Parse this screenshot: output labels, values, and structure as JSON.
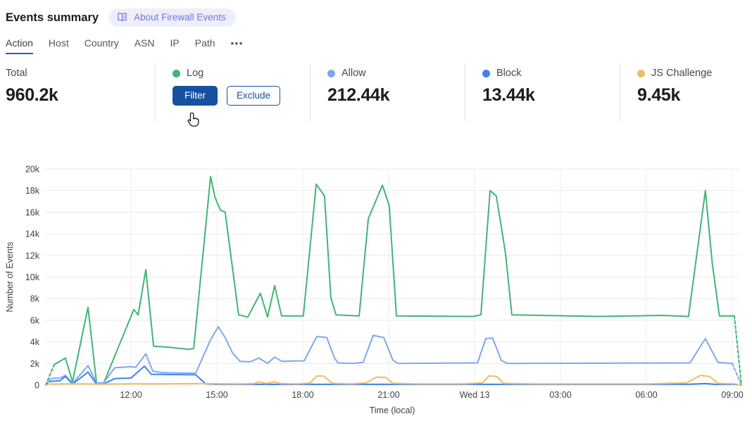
{
  "header": {
    "title": "Events summary",
    "about_badge": "About Firewall Events"
  },
  "tabs": {
    "items": [
      {
        "label": "Action",
        "active": true
      },
      {
        "label": "Host",
        "active": false
      },
      {
        "label": "Country",
        "active": false
      },
      {
        "label": "ASN",
        "active": false
      },
      {
        "label": "IP",
        "active": false
      },
      {
        "label": "Path",
        "active": false
      }
    ],
    "overflow_label": "•••"
  },
  "stats": {
    "total": {
      "label": "Total",
      "value": "960.2k"
    },
    "log": {
      "label": "Log",
      "color": "#41b576",
      "filter_label": "Filter",
      "exclude_label": "Exclude"
    },
    "allow": {
      "label": "Allow",
      "value": "212.44k",
      "color": "#7fa7f0"
    },
    "block": {
      "label": "Block",
      "value": "13.44k",
      "color": "#3e81f1"
    },
    "js_challenge": {
      "label": "JS Challenge",
      "value": "9.45k",
      "color": "#f2ba62"
    }
  },
  "chart_data": {
    "type": "line",
    "title": "",
    "xlabel": "Time (local)",
    "ylabel": "Number of Events",
    "grid": true,
    "legend_position": "stats-row-above-chart",
    "unit": "k (thousands of events)",
    "ylim": [
      0,
      20
    ],
    "x_domain_hours": [
      0,
      24.32
    ],
    "x_ticks": [
      {
        "h": 3,
        "label": "12:00"
      },
      {
        "h": 6,
        "label": "15:00"
      },
      {
        "h": 9,
        "label": "18:00"
      },
      {
        "h": 12,
        "label": "21:00"
      },
      {
        "h": 15,
        "label": "Wed 13"
      },
      {
        "h": 18,
        "label": "03:00"
      },
      {
        "h": 21,
        "label": "06:00"
      },
      {
        "h": 24,
        "label": "09:00"
      }
    ],
    "y_ticks": [
      {
        "v": 0,
        "label": "0"
      },
      {
        "v": 2,
        "label": "2k"
      },
      {
        "v": 4,
        "label": "4k"
      },
      {
        "v": 6,
        "label": "6k"
      },
      {
        "v": 8,
        "label": "8k"
      },
      {
        "v": 10,
        "label": "10k"
      },
      {
        "v": 12,
        "label": "12k"
      },
      {
        "v": 14,
        "label": "14k"
      },
      {
        "v": 16,
        "label": "16k"
      },
      {
        "v": 18,
        "label": "18k"
      },
      {
        "v": 20,
        "label": "20k"
      }
    ],
    "series": [
      {
        "name": "Log",
        "color": "#41b576",
        "lead": [
          [
            0.02,
            0
          ],
          [
            0.32,
            1.9
          ]
        ],
        "points": [
          [
            0.32,
            1.9
          ],
          [
            0.71,
            2.5
          ],
          [
            0.96,
            0.3
          ],
          [
            1.5,
            7.2
          ],
          [
            1.8,
            0.15
          ],
          [
            2.04,
            0.15
          ],
          [
            3.1,
            7.0
          ],
          [
            3.25,
            6.5
          ],
          [
            3.52,
            10.7
          ],
          [
            3.79,
            3.6
          ],
          [
            4.33,
            3.5
          ],
          [
            5.02,
            3.3
          ],
          [
            5.19,
            3.4
          ],
          [
            5.78,
            19.3
          ],
          [
            5.93,
            17.4
          ],
          [
            6.12,
            16.2
          ],
          [
            6.29,
            16.0
          ],
          [
            6.76,
            6.5
          ],
          [
            7.08,
            6.3
          ],
          [
            7.52,
            8.5
          ],
          [
            7.77,
            6.3
          ],
          [
            8.02,
            9.2
          ],
          [
            8.26,
            6.4
          ],
          [
            9.02,
            6.4
          ],
          [
            9.47,
            18.6
          ],
          [
            9.76,
            17.5
          ],
          [
            9.98,
            8.1
          ],
          [
            10.16,
            6.5
          ],
          [
            10.97,
            6.4
          ],
          [
            11.29,
            15.4
          ],
          [
            11.78,
            18.5
          ],
          [
            12.02,
            16.6
          ],
          [
            12.27,
            6.4
          ],
          [
            14.95,
            6.35
          ],
          [
            15.22,
            6.5
          ],
          [
            15.54,
            18.0
          ],
          [
            15.76,
            17.5
          ],
          [
            16.08,
            12.2
          ],
          [
            16.3,
            6.5
          ],
          [
            19.32,
            6.35
          ],
          [
            21.54,
            6.45
          ],
          [
            22.47,
            6.35
          ],
          [
            23.06,
            18.0
          ],
          [
            23.3,
            11.3
          ],
          [
            23.55,
            6.4
          ],
          [
            24.07,
            6.4
          ]
        ],
        "tail": [
          [
            24.07,
            6.4
          ],
          [
            24.32,
            0
          ]
        ]
      },
      {
        "name": "Allow",
        "color": "#7fa7f0",
        "lead": [
          [
            0.02,
            0
          ],
          [
            0.2,
            0.6
          ]
        ],
        "points": [
          [
            0.2,
            0.6
          ],
          [
            0.52,
            0.65
          ],
          [
            0.71,
            0.9
          ],
          [
            0.96,
            0.15
          ],
          [
            1.5,
            1.8
          ],
          [
            1.8,
            0.2
          ],
          [
            2.04,
            0.2
          ],
          [
            2.43,
            1.6
          ],
          [
            3.0,
            1.7
          ],
          [
            3.17,
            1.65
          ],
          [
            3.52,
            2.9
          ],
          [
            3.76,
            1.3
          ],
          [
            4.08,
            1.15
          ],
          [
            5.26,
            1.1
          ],
          [
            5.78,
            4.2
          ],
          [
            6.05,
            5.4
          ],
          [
            6.29,
            4.4
          ],
          [
            6.54,
            3.0
          ],
          [
            6.81,
            2.2
          ],
          [
            7.15,
            2.15
          ],
          [
            7.47,
            2.5
          ],
          [
            7.77,
            2.0
          ],
          [
            8.02,
            2.6
          ],
          [
            8.26,
            2.2
          ],
          [
            9.05,
            2.25
          ],
          [
            9.49,
            4.5
          ],
          [
            9.84,
            4.4
          ],
          [
            10.11,
            2.5
          ],
          [
            10.23,
            2.05
          ],
          [
            10.72,
            2.0
          ],
          [
            11.11,
            2.1
          ],
          [
            11.46,
            4.6
          ],
          [
            11.83,
            4.4
          ],
          [
            12.15,
            2.3
          ],
          [
            12.32,
            2.0
          ],
          [
            15.1,
            2.05
          ],
          [
            15.39,
            4.3
          ],
          [
            15.63,
            4.35
          ],
          [
            15.93,
            2.3
          ],
          [
            16.13,
            2.0
          ],
          [
            22.52,
            2.05
          ],
          [
            23.06,
            4.3
          ],
          [
            23.5,
            2.1
          ],
          [
            24.0,
            2.0
          ]
        ],
        "tail": [
          [
            24.0,
            2.0
          ],
          [
            24.32,
            0
          ]
        ]
      },
      {
        "name": "Block",
        "color": "#3e81f1",
        "lead": [
          [
            0.02,
            0
          ],
          [
            0.2,
            0.35
          ]
        ],
        "points": [
          [
            0.2,
            0.35
          ],
          [
            0.52,
            0.4
          ],
          [
            0.71,
            0.8
          ],
          [
            0.96,
            0.1
          ],
          [
            1.5,
            1.2
          ],
          [
            1.8,
            0.1
          ],
          [
            2.04,
            0.1
          ],
          [
            2.43,
            0.6
          ],
          [
            3.0,
            0.65
          ],
          [
            3.47,
            1.75
          ],
          [
            3.71,
            1.0
          ],
          [
            5.26,
            0.95
          ],
          [
            5.61,
            0.12
          ],
          [
            6.05,
            0.08
          ],
          [
            10,
            0.07
          ],
          [
            14,
            0.07
          ],
          [
            18,
            0.07
          ],
          [
            22.5,
            0.08
          ],
          [
            23.06,
            0.14
          ],
          [
            23.4,
            0.07
          ],
          [
            24.07,
            0.07
          ]
        ],
        "tail": [
          [
            24.07,
            0.07
          ],
          [
            24.32,
            0
          ]
        ]
      },
      {
        "name": "JS Challenge",
        "color": "#f2ba62",
        "lead": [
          [
            0.02,
            0
          ],
          [
            0.2,
            0.1
          ]
        ],
        "points": [
          [
            0.2,
            0.1
          ],
          [
            1,
            0.12
          ],
          [
            2,
            0.1
          ],
          [
            3,
            0.12
          ],
          [
            4,
            0.12
          ],
          [
            5.5,
            0.14
          ],
          [
            6.8,
            0.12
          ],
          [
            7.3,
            0.15
          ],
          [
            7.47,
            0.3
          ],
          [
            7.72,
            0.15
          ],
          [
            8.02,
            0.3
          ],
          [
            8.21,
            0.15
          ],
          [
            8.8,
            0.12
          ],
          [
            9.25,
            0.18
          ],
          [
            9.49,
            0.85
          ],
          [
            9.74,
            0.82
          ],
          [
            10.04,
            0.16
          ],
          [
            10.7,
            0.12
          ],
          [
            11.21,
            0.2
          ],
          [
            11.58,
            0.75
          ],
          [
            11.9,
            0.7
          ],
          [
            12.15,
            0.16
          ],
          [
            13,
            0.12
          ],
          [
            14.6,
            0.12
          ],
          [
            15.27,
            0.2
          ],
          [
            15.51,
            0.85
          ],
          [
            15.78,
            0.8
          ],
          [
            16.01,
            0.16
          ],
          [
            17,
            0.12
          ],
          [
            19,
            0.12
          ],
          [
            21,
            0.12
          ],
          [
            22.4,
            0.2
          ],
          [
            22.89,
            0.9
          ],
          [
            23.21,
            0.8
          ],
          [
            23.5,
            0.16
          ],
          [
            24.07,
            0.12
          ]
        ],
        "tail": [
          [
            24.07,
            0.12
          ],
          [
            24.32,
            0.02
          ]
        ]
      }
    ]
  }
}
